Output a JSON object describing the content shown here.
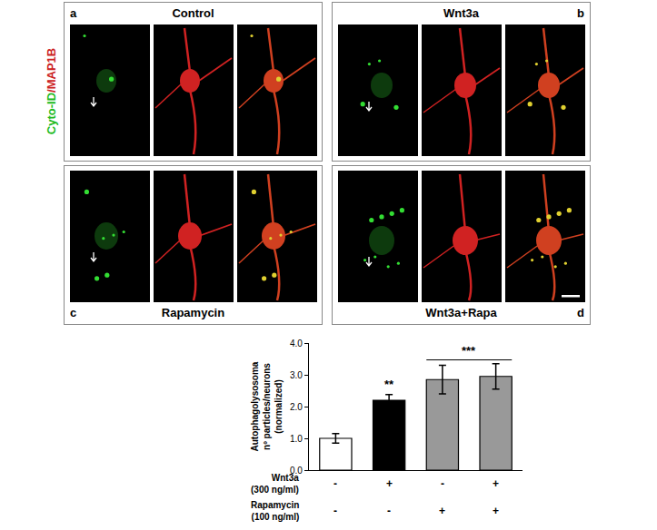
{
  "panels": [
    {
      "letter": "a",
      "title": "Control"
    },
    {
      "letter": "b",
      "title": "Wnt3a"
    },
    {
      "letter": "c",
      "title": "Rapamycin"
    },
    {
      "letter": "d",
      "title": "Wnt3a+Rapa"
    }
  ],
  "stain_label": [
    {
      "text": "Cyto-ID",
      "color": "#22bb22"
    },
    {
      "text": "/",
      "color": "#cc2222"
    },
    {
      "text": "MAP1B",
      "color": "#cc2222"
    }
  ],
  "chart_data": {
    "type": "bar",
    "categories": [
      null,
      null,
      null,
      null
    ],
    "values": [
      1.0,
      2.2,
      2.85,
      2.95
    ],
    "errors": [
      0.15,
      0.18,
      0.45,
      0.4
    ],
    "colors": [
      "#ffffff",
      "#000000",
      "#999999",
      "#999999"
    ],
    "ylabel": [
      "Autophagolysosoma",
      "nº particles/neurons",
      "(normalized)"
    ],
    "ylim": [
      0,
      4
    ],
    "yticks": [
      {
        "value": 0,
        "label": "0.0"
      },
      {
        "value": 1,
        "label": "1.0"
      },
      {
        "value": 2,
        "label": "2.0"
      },
      {
        "value": 3,
        "label": "3.0"
      },
      {
        "value": 4,
        "label": "4.0"
      }
    ],
    "grid": false,
    "tick_labels": "y",
    "treatments": [
      {
        "label": [
          "Wnt3a",
          "(300 ng/ml)"
        ],
        "signs": [
          "-",
          "+",
          "-",
          "+"
        ]
      },
      {
        "label": [
          "Rapamycin",
          "(100 ng/ml)"
        ],
        "signs": [
          "-",
          "-",
          "+",
          "+"
        ]
      }
    ],
    "significance": [
      {
        "text": "**",
        "bars": [
          1
        ]
      },
      {
        "text": "***",
        "bars": [
          2,
          3
        ]
      }
    ]
  }
}
